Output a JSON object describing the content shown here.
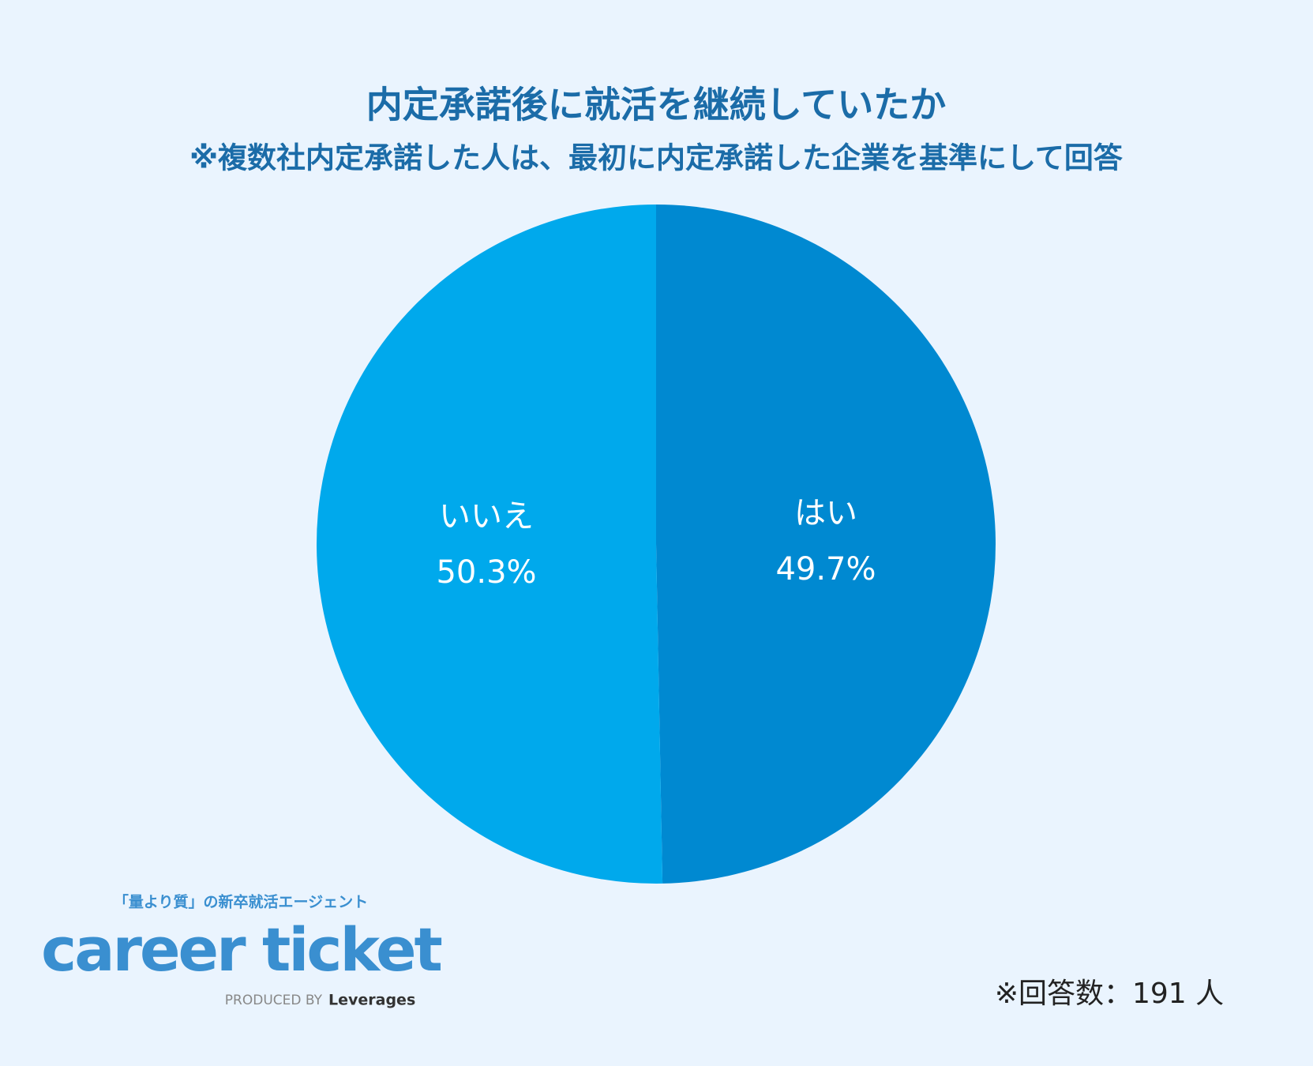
{
  "chart_data": {
    "type": "pie",
    "title": "内定承諾後に就活を継続していたか",
    "subtitle": "※複数社内定承諾した人は、最初に内定承諾した企業を基準にして回答",
    "categories": [
      "はい",
      "いいえ"
    ],
    "values": [
      49.7,
      50.3
    ],
    "value_labels": [
      "49.7%",
      "50.3%"
    ],
    "colors": [
      "#0089d1",
      "#00a9ec"
    ],
    "note": "※回答数：191 人"
  },
  "logo": {
    "tagline": "「量より質」の新卒就活エージェント",
    "name": "career ticket",
    "produced_by": "PRODUCED BY",
    "company": "Leverages"
  }
}
